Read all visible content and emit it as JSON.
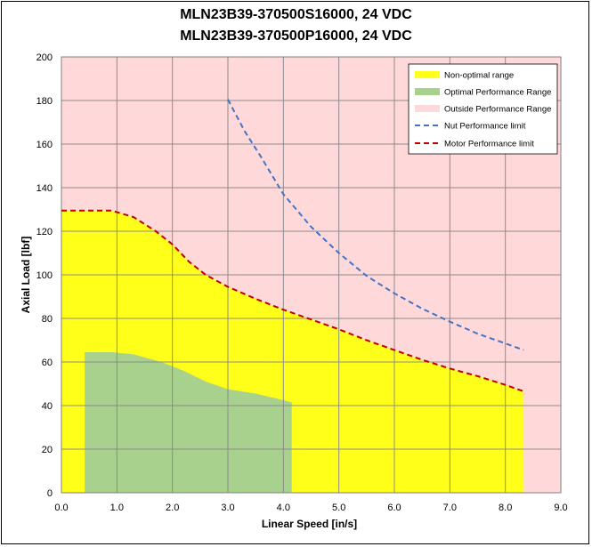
{
  "chart_data": {
    "type": "area",
    "title": "MLN23B39-370500S16000, 24 VDC",
    "subtitle": "MLN23B39-370500P16000, 24 VDC",
    "xlabel": "Linear Speed [in/s]",
    "ylabel": "Axial Load [lbf]",
    "xlim": [
      0,
      9
    ],
    "ylim": [
      0,
      200
    ],
    "x_ticks": [
      "0.0",
      "1.0",
      "2.0",
      "3.0",
      "4.0",
      "5.0",
      "6.0",
      "7.0",
      "8.0",
      "9.0"
    ],
    "y_ticks": [
      "0",
      "20",
      "40",
      "60",
      "80",
      "100",
      "120",
      "140",
      "160",
      "180",
      "200"
    ],
    "grid": true,
    "legend_position": "top-right",
    "background_color": "#ffd9d9",
    "series": [
      {
        "name": "Non-optimal range",
        "kind": "area",
        "color": "#ffff1a",
        "points": [
          [
            0.0,
            129.5
          ],
          [
            0.5,
            129.5
          ],
          [
            0.9,
            129.5
          ],
          [
            1.3,
            126.5
          ],
          [
            1.7,
            120
          ],
          [
            2.0,
            114
          ],
          [
            2.3,
            106
          ],
          [
            2.6,
            100
          ],
          [
            3.0,
            94.5
          ],
          [
            3.5,
            89
          ],
          [
            4.0,
            84
          ],
          [
            4.5,
            79.5
          ],
          [
            5.0,
            75
          ],
          [
            5.5,
            70
          ],
          [
            6.0,
            65.5
          ],
          [
            6.5,
            61
          ],
          [
            7.0,
            57
          ],
          [
            7.5,
            53.5
          ],
          [
            8.0,
            49.5
          ],
          [
            8.33,
            46.5
          ]
        ]
      },
      {
        "name": "Optimal Performance Range",
        "kind": "area",
        "color": "#a9d18e",
        "points": [
          [
            0.42,
            64.5
          ],
          [
            0.9,
            64.5
          ],
          [
            1.3,
            63.5
          ],
          [
            1.8,
            60
          ],
          [
            2.2,
            56
          ],
          [
            2.6,
            51
          ],
          [
            3.0,
            47.5
          ],
          [
            3.5,
            45.5
          ],
          [
            4.0,
            42.5
          ],
          [
            4.15,
            41.5
          ]
        ]
      },
      {
        "name": "Outside Performance Range",
        "kind": "area",
        "color": "#ffd9d9"
      },
      {
        "name": "Nut Performance limit",
        "kind": "dashed-line",
        "color": "#4472c4",
        "points": [
          [
            3.0,
            180.5
          ],
          [
            3.3,
            166
          ],
          [
            3.6,
            154
          ],
          [
            4.0,
            137
          ],
          [
            4.5,
            122
          ],
          [
            5.0,
            110
          ],
          [
            5.5,
            99.5
          ],
          [
            6.0,
            91.5
          ],
          [
            6.5,
            84.5
          ],
          [
            7.0,
            78.5
          ],
          [
            7.5,
            73
          ],
          [
            8.0,
            68.5
          ],
          [
            8.33,
            65.5
          ]
        ]
      },
      {
        "name": "Motor Performance limit",
        "kind": "dashed-line",
        "color": "#c00000",
        "points": [
          [
            0.0,
            129.5
          ],
          [
            0.5,
            129.5
          ],
          [
            0.9,
            129.5
          ],
          [
            1.3,
            126.5
          ],
          [
            1.7,
            120
          ],
          [
            2.0,
            114
          ],
          [
            2.3,
            106
          ],
          [
            2.6,
            100
          ],
          [
            3.0,
            94.5
          ],
          [
            3.5,
            89
          ],
          [
            4.0,
            84
          ],
          [
            4.5,
            79.5
          ],
          [
            5.0,
            75
          ],
          [
            5.5,
            70
          ],
          [
            6.0,
            65.5
          ],
          [
            6.5,
            61
          ],
          [
            7.0,
            57
          ],
          [
            7.5,
            53.5
          ],
          [
            8.0,
            49.5
          ],
          [
            8.33,
            46.5
          ]
        ]
      }
    ]
  }
}
